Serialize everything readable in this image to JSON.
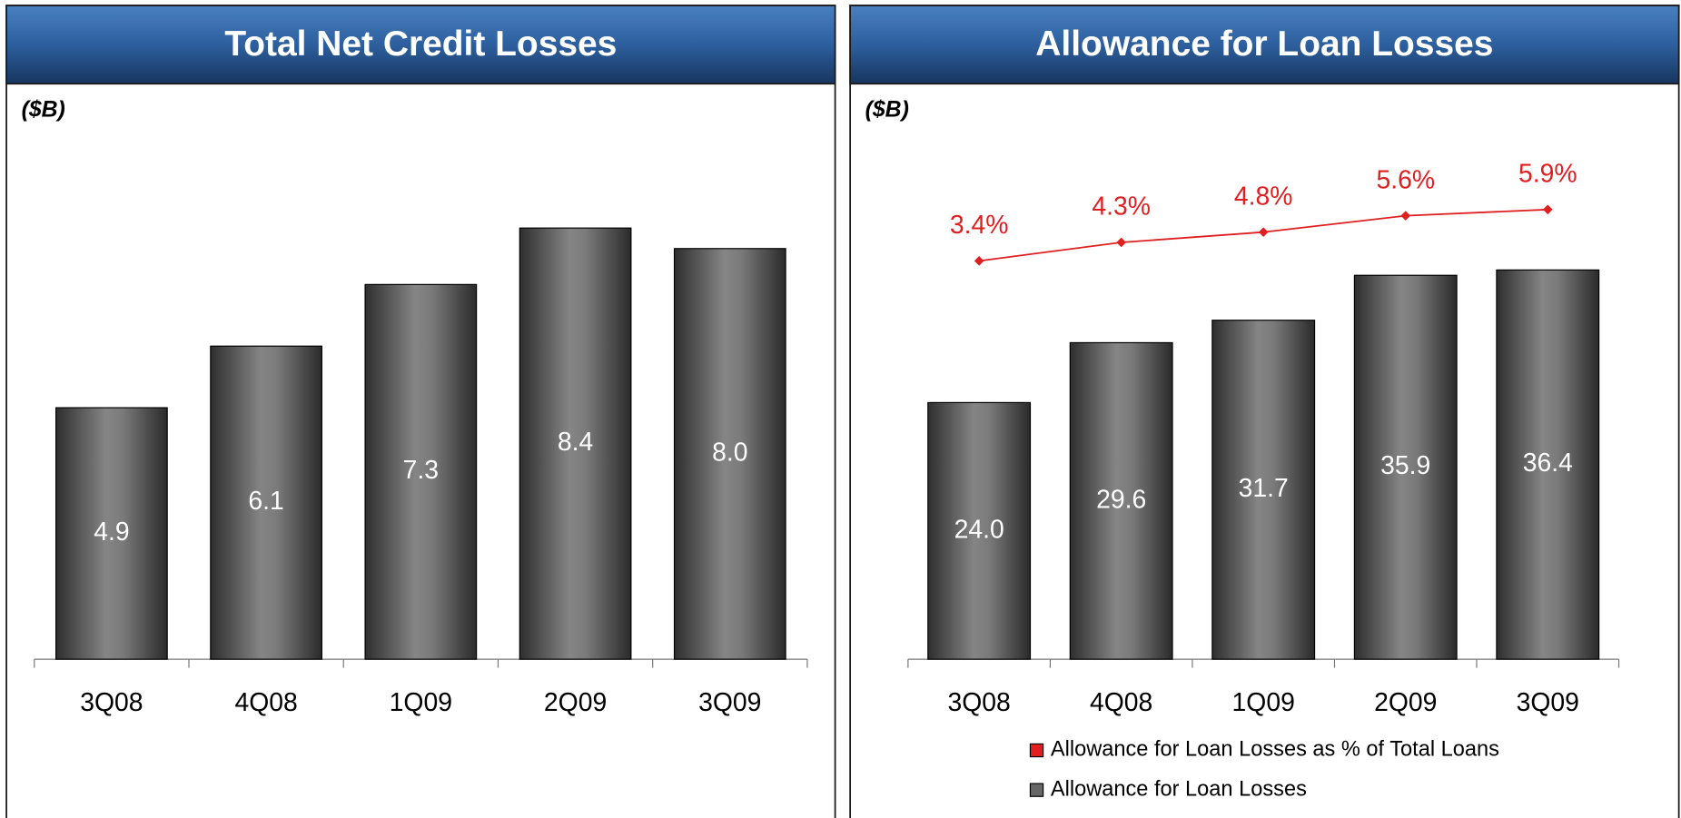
{
  "chart_data": [
    {
      "type": "bar",
      "title": "Total Net Credit Losses",
      "y_label": "($B)",
      "categories": [
        "3Q08",
        "4Q08",
        "1Q09",
        "2Q09",
        "3Q09"
      ],
      "values": [
        4.9,
        6.1,
        7.3,
        8.4,
        8.0
      ],
      "value_labels": [
        "4.9",
        "6.1",
        "7.3",
        "8.4",
        "8.0"
      ],
      "color": "#4d4d4d",
      "ylim": [
        0,
        10
      ]
    },
    {
      "type": "bar",
      "title": "Allowance for Loan Losses",
      "y_label": "($B)",
      "categories": [
        "3Q08",
        "4Q08",
        "1Q09",
        "2Q09",
        "3Q09"
      ],
      "series": [
        {
          "name": "Allowance for Loan Losses as % of Total Loans",
          "type": "line",
          "axis": "y2",
          "color": "#e02020",
          "values": [
            3.4,
            4.3,
            4.8,
            5.6,
            5.9
          ],
          "value_labels": [
            "3.4%",
            "4.3%",
            "4.8%",
            "5.6%",
            "5.9%"
          ]
        },
        {
          "name": "Allowance for Loan Losses",
          "type": "bar",
          "color": "#4d4d4d",
          "values": [
            24.0,
            29.6,
            31.7,
            35.9,
            36.4
          ],
          "value_labels": [
            "24.0",
            "29.6",
            "31.7",
            "35.9",
            "36.4"
          ]
        }
      ],
      "ylim": [
        0,
        48
      ],
      "y2lim": [
        -16,
        9
      ]
    }
  ]
}
